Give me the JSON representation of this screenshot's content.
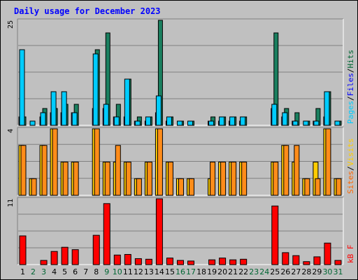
{
  "title": "Daily usage for December 2023",
  "colors": {
    "frame_bg": "#c0c0c0",
    "panel_bg": "#c0c0c0",
    "title": "#0000ff",
    "pages": "#00ccff",
    "files": "#0000ff",
    "hits": "#006633",
    "sites": "#ff6600",
    "visits": "#ffcc00",
    "kbytes": "#ff0000",
    "weekend_label": "#006633"
  },
  "chart_data": [
    {
      "type": "bar",
      "name": "hits-files-pages",
      "ymax_label": "25",
      "ylim": [
        0,
        25
      ],
      "grid": true,
      "categories": [
        "1",
        "2",
        "3",
        "4",
        "5",
        "6",
        "7",
        "8",
        "9",
        "10",
        "11",
        "12",
        "13",
        "14",
        "15",
        "16",
        "17",
        "18",
        "19",
        "20",
        "21",
        "22",
        "23",
        "24",
        "25",
        "26",
        "27",
        "28",
        "29",
        "30",
        "31"
      ],
      "legend": [
        {
          "label": "Pages",
          "color": "#00ccff"
        },
        {
          "label": "/",
          "color": "#000000"
        },
        {
          "label": "Files",
          "color": "#0000ff"
        },
        {
          "label": "/",
          "color": "#000000"
        },
        {
          "label": "Hits",
          "color": "#006633"
        }
      ],
      "series": [
        {
          "name": "Hits",
          "color": "#1a7f5f",
          "values": [
            2,
            0,
            4,
            4,
            5,
            5,
            0,
            18,
            22,
            5,
            11,
            2,
            2,
            25,
            2,
            1,
            1,
            0,
            2,
            2,
            2,
            2,
            0,
            0,
            22,
            4,
            3,
            1,
            4,
            8,
            1
          ]
        },
        {
          "name": "Files",
          "color": "#0000ff",
          "values": [
            2,
            0,
            2,
            3,
            3,
            3,
            0,
            4,
            4,
            2,
            2,
            1,
            1,
            3,
            1,
            0,
            0,
            0,
            1,
            1,
            1,
            1,
            0,
            0,
            4,
            2,
            1,
            0,
            1,
            2,
            0
          ]
        },
        {
          "name": "Pages",
          "color": "#00ccff",
          "values": [
            18,
            1,
            3,
            8,
            8,
            3,
            0,
            17,
            5,
            2,
            11,
            1,
            2,
            7,
            2,
            1,
            1,
            0,
            1,
            2,
            2,
            2,
            0,
            0,
            5,
            3,
            1,
            1,
            1,
            8,
            1
          ]
        }
      ]
    },
    {
      "type": "bar",
      "name": "visits-sites",
      "ymax_label": "4",
      "ylim": [
        0,
        4
      ],
      "grid": true,
      "categories": [
        "1",
        "2",
        "3",
        "4",
        "5",
        "6",
        "7",
        "8",
        "9",
        "10",
        "11",
        "12",
        "13",
        "14",
        "15",
        "16",
        "17",
        "18",
        "19",
        "20",
        "21",
        "22",
        "23",
        "24",
        "25",
        "26",
        "27",
        "28",
        "29",
        "30",
        "31"
      ],
      "legend": [
        {
          "label": "Sites",
          "color": "#ff6600"
        },
        {
          "label": "/",
          "color": "#000000"
        },
        {
          "label": "Visits",
          "color": "#ffcc00"
        }
      ],
      "series": [
        {
          "name": "Visits",
          "color": "#ffcc00",
          "values": [
            3,
            1,
            3,
            4,
            2,
            2,
            0,
            4,
            2,
            2,
            2,
            1,
            2,
            4,
            2,
            1,
            1,
            0,
            1,
            2,
            2,
            2,
            0,
            0,
            2,
            3,
            2,
            1,
            2,
            4,
            1
          ]
        },
        {
          "name": "Sites",
          "color": "#ff8c1a",
          "values": [
            3,
            1,
            3,
            4,
            2,
            2,
            0,
            4,
            2,
            3,
            2,
            1,
            2,
            4,
            2,
            1,
            1,
            0,
            2,
            2,
            2,
            2,
            0,
            0,
            2,
            3,
            3,
            1,
            1,
            4,
            1
          ]
        }
      ]
    },
    {
      "type": "bar",
      "name": "kbytes",
      "ymax_label": "11",
      "ylim": [
        0,
        11
      ],
      "grid": true,
      "categories": [
        "1",
        "2",
        "3",
        "4",
        "5",
        "6",
        "7",
        "8",
        "9",
        "10",
        "11",
        "12",
        "13",
        "14",
        "15",
        "16",
        "17",
        "18",
        "19",
        "20",
        "21",
        "22",
        "23",
        "24",
        "25",
        "26",
        "27",
        "28",
        "29",
        "30",
        "31"
      ],
      "legend": [
        {
          "label": "kB F",
          "color": "#ff0000"
        }
      ],
      "series": [
        {
          "name": "kB F",
          "color": "#ff0000",
          "values": [
            4.8,
            0,
            0.7,
            2.2,
            2.9,
            2.5,
            0,
            4.9,
            10.2,
            1.6,
            1.7,
            1,
            0.9,
            11,
            1.1,
            0.7,
            0.6,
            0,
            0.8,
            1.1,
            0.8,
            0.9,
            0,
            0,
            9.8,
            2,
            1.5,
            0.5,
            1.3,
            3.6,
            0.7
          ]
        }
      ]
    }
  ],
  "x_labels": [
    "1",
    "2",
    "3",
    "4",
    "5",
    "6",
    "7",
    "8",
    "9",
    "10",
    "11",
    "12",
    "13",
    "14",
    "15",
    "16",
    "17",
    "18",
    "19",
    "20",
    "21",
    "22",
    "23",
    "24",
    "25",
    "26",
    "27",
    "28",
    "29",
    "30",
    "31"
  ],
  "weekend_days": [
    "2",
    "3",
    "9",
    "10",
    "16",
    "17",
    "23",
    "24",
    "30",
    "31"
  ]
}
